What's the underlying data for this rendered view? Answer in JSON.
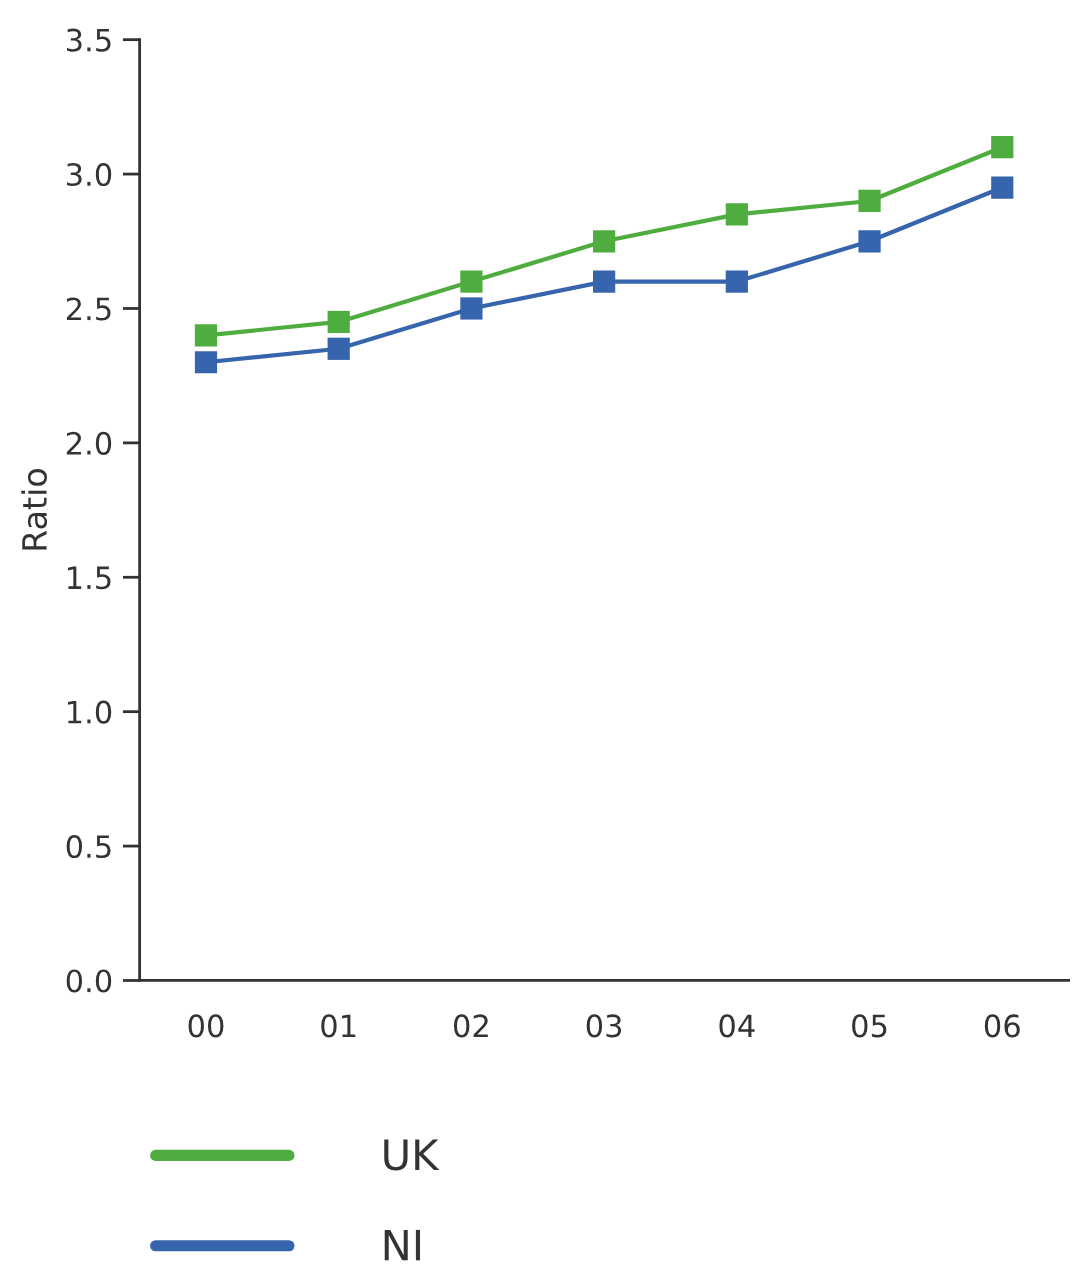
{
  "chart_data": {
    "type": "line",
    "ylabel": "Ratio",
    "categories": [
      "00",
      "01",
      "02",
      "03",
      "04",
      "05",
      "06"
    ],
    "series": [
      {
        "name": "UK",
        "color": "#4fad3f",
        "values": [
          2.4,
          2.45,
          2.6,
          2.75,
          2.85,
          2.9,
          3.1
        ]
      },
      {
        "name": "NI",
        "color": "#3765ad",
        "values": [
          2.3,
          2.35,
          2.5,
          2.6,
          2.6,
          2.75,
          2.95
        ]
      }
    ],
    "ylim": [
      0,
      3.5
    ],
    "yticks": [
      {
        "value": 0,
        "label": "0.0"
      },
      0.5,
      {
        "value": 1,
        "label": "1.0"
      },
      1.5,
      {
        "value": 2,
        "label": "2.0"
      },
      2.5,
      {
        "value": 3,
        "label": "3.0"
      },
      3.5
    ],
    "marker": "square",
    "line_style": "solid",
    "grid": false,
    "legend": "bottom"
  }
}
